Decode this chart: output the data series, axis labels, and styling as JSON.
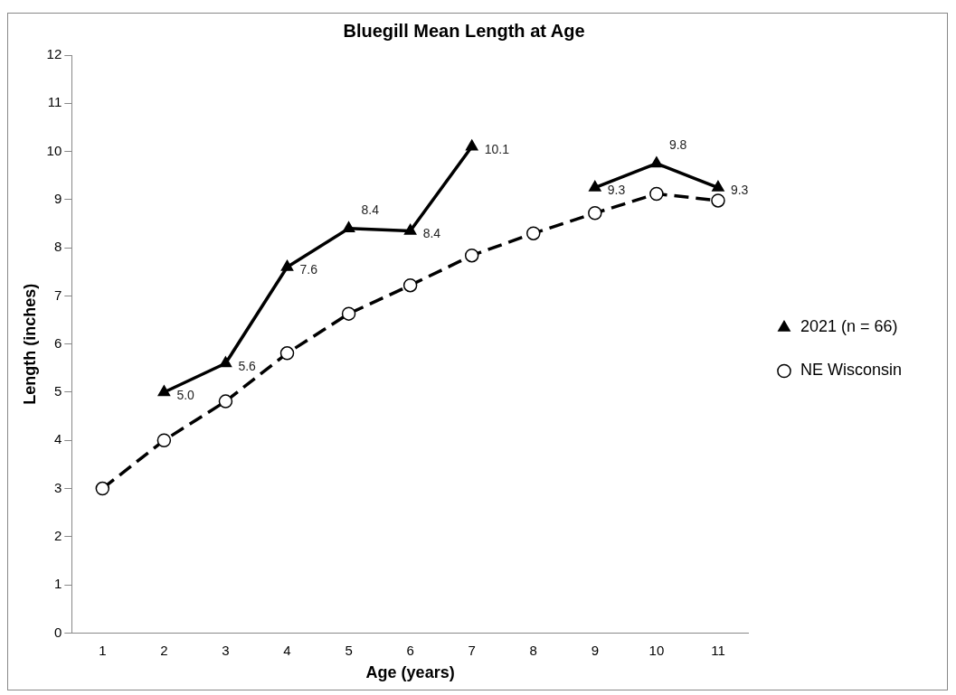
{
  "chart_data": {
    "type": "line",
    "title": "Bluegill Mean Length at Age",
    "xlabel": "Age (years)",
    "ylabel": "Length (inches)",
    "categories": [
      "1",
      "2",
      "3",
      "4",
      "5",
      "6",
      "7",
      "8",
      "9",
      "10",
      "11"
    ],
    "series": [
      {
        "name": "2021 (n = 66)",
        "color": "#000000",
        "marker": "triangle",
        "line_style": "solid",
        "values": [
          null,
          5.0,
          5.6,
          7.6,
          8.4,
          8.35,
          10.1,
          null,
          9.25,
          9.75,
          9.25
        ],
        "value_labels": [
          null,
          "5.0",
          "5.6",
          "7.6",
          "8.4",
          "8.4",
          "10.1",
          null,
          "9.3",
          "9.8",
          "9.3"
        ]
      },
      {
        "name": "NE Wisconsin",
        "color": "#000000",
        "marker": "circle",
        "line_style": "dashed",
        "values": [
          3.0,
          4.0,
          4.81,
          5.81,
          6.63,
          7.22,
          7.84,
          8.3,
          8.72,
          9.12,
          8.98
        ]
      }
    ],
    "ylim": [
      0,
      12
    ],
    "yticks": [
      0,
      1,
      2,
      3,
      4,
      5,
      6,
      7,
      8,
      9,
      10,
      11,
      12
    ],
    "grid": false,
    "legend": "right"
  }
}
